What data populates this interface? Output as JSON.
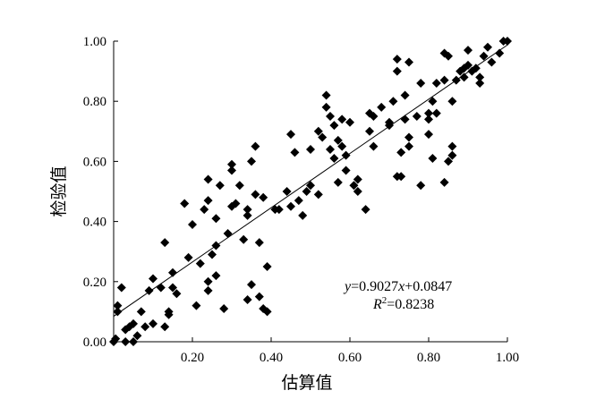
{
  "chart_data": {
    "type": "scatter",
    "title": "",
    "xlabel": "估算值",
    "ylabel": "检验值",
    "xlim": [
      0,
      1
    ],
    "ylim": [
      0,
      1
    ],
    "x_ticks": [
      "0.20",
      "0.40",
      "0.60",
      "0.80",
      "1.00"
    ],
    "y_ticks": [
      "0.00",
      "0.20",
      "0.40",
      "0.60",
      "0.80",
      "1.00"
    ],
    "grid": false,
    "marker": "diamond",
    "marker_color": "#000000",
    "regression": {
      "slope": 0.9027,
      "intercept": 0.0847
    },
    "equation_text": {
      "y_var": "y",
      "eq_part1": "=0.9027",
      "x_var": "x",
      "eq_part2": "+0.0847"
    },
    "r2_text": {
      "r_var": "R",
      "sup": "2",
      "value": "=0.8238"
    },
    "points": [
      [
        0.0,
        0.0
      ],
      [
        0.005,
        0.01
      ],
      [
        0.01,
        0.12
      ],
      [
        0.01,
        0.1
      ],
      [
        0.02,
        0.18
      ],
      [
        0.03,
        0.0
      ],
      [
        0.03,
        0.04
      ],
      [
        0.04,
        0.05
      ],
      [
        0.05,
        0.0
      ],
      [
        0.05,
        0.06
      ],
      [
        0.06,
        0.02
      ],
      [
        0.07,
        0.1
      ],
      [
        0.08,
        0.05
      ],
      [
        0.09,
        0.17
      ],
      [
        0.1,
        0.21
      ],
      [
        0.1,
        0.06
      ],
      [
        0.12,
        0.18
      ],
      [
        0.13,
        0.33
      ],
      [
        0.13,
        0.05
      ],
      [
        0.14,
        0.09
      ],
      [
        0.14,
        0.1
      ],
      [
        0.15,
        0.23
      ],
      [
        0.15,
        0.18
      ],
      [
        0.16,
        0.16
      ],
      [
        0.18,
        0.46
      ],
      [
        0.19,
        0.28
      ],
      [
        0.2,
        0.39
      ],
      [
        0.21,
        0.12
      ],
      [
        0.22,
        0.26
      ],
      [
        0.23,
        0.44
      ],
      [
        0.24,
        0.54
      ],
      [
        0.24,
        0.47
      ],
      [
        0.24,
        0.2
      ],
      [
        0.24,
        0.17
      ],
      [
        0.25,
        0.29
      ],
      [
        0.26,
        0.41
      ],
      [
        0.26,
        0.32
      ],
      [
        0.26,
        0.22
      ],
      [
        0.27,
        0.52
      ],
      [
        0.28,
        0.11
      ],
      [
        0.29,
        0.36
      ],
      [
        0.3,
        0.59
      ],
      [
        0.3,
        0.45
      ],
      [
        0.3,
        0.57
      ],
      [
        0.31,
        0.46
      ],
      [
        0.32,
        0.52
      ],
      [
        0.33,
        0.34
      ],
      [
        0.34,
        0.42
      ],
      [
        0.34,
        0.44
      ],
      [
        0.34,
        0.14
      ],
      [
        0.35,
        0.6
      ],
      [
        0.35,
        0.19
      ],
      [
        0.36,
        0.65
      ],
      [
        0.36,
        0.49
      ],
      [
        0.37,
        0.33
      ],
      [
        0.37,
        0.15
      ],
      [
        0.38,
        0.48
      ],
      [
        0.38,
        0.11
      ],
      [
        0.39,
        0.25
      ],
      [
        0.39,
        0.1
      ],
      [
        0.41,
        0.44
      ],
      [
        0.42,
        0.44
      ],
      [
        0.44,
        0.5
      ],
      [
        0.45,
        0.69
      ],
      [
        0.45,
        0.45
      ],
      [
        0.46,
        0.63
      ],
      [
        0.47,
        0.47
      ],
      [
        0.48,
        0.42
      ],
      [
        0.49,
        0.5
      ],
      [
        0.5,
        0.52
      ],
      [
        0.5,
        0.64
      ],
      [
        0.52,
        0.49
      ],
      [
        0.52,
        0.7
      ],
      [
        0.53,
        0.68
      ],
      [
        0.54,
        0.82
      ],
      [
        0.54,
        0.78
      ],
      [
        0.55,
        0.75
      ],
      [
        0.55,
        0.64
      ],
      [
        0.56,
        0.72
      ],
      [
        0.56,
        0.61
      ],
      [
        0.57,
        0.67
      ],
      [
        0.57,
        0.53
      ],
      [
        0.58,
        0.74
      ],
      [
        0.58,
        0.65
      ],
      [
        0.59,
        0.57
      ],
      [
        0.59,
        0.62
      ],
      [
        0.6,
        0.73
      ],
      [
        0.61,
        0.52
      ],
      [
        0.62,
        0.5
      ],
      [
        0.62,
        0.54
      ],
      [
        0.64,
        0.44
      ],
      [
        0.65,
        0.76
      ],
      [
        0.65,
        0.7
      ],
      [
        0.66,
        0.75
      ],
      [
        0.66,
        0.65
      ],
      [
        0.68,
        0.78
      ],
      [
        0.7,
        0.73
      ],
      [
        0.7,
        0.72
      ],
      [
        0.71,
        0.8
      ],
      [
        0.72,
        0.9
      ],
      [
        0.72,
        0.55
      ],
      [
        0.72,
        0.94
      ],
      [
        0.73,
        0.63
      ],
      [
        0.73,
        0.55
      ],
      [
        0.74,
        0.82
      ],
      [
        0.74,
        0.74
      ],
      [
        0.75,
        0.93
      ],
      [
        0.75,
        0.68
      ],
      [
        0.75,
        0.65
      ],
      [
        0.77,
        0.75
      ],
      [
        0.78,
        0.86
      ],
      [
        0.78,
        0.52
      ],
      [
        0.8,
        0.69
      ],
      [
        0.8,
        0.74
      ],
      [
        0.8,
        0.76
      ],
      [
        0.81,
        0.61
      ],
      [
        0.81,
        0.8
      ],
      [
        0.82,
        0.76
      ],
      [
        0.82,
        0.86
      ],
      [
        0.84,
        0.87
      ],
      [
        0.84,
        0.96
      ],
      [
        0.84,
        0.53
      ],
      [
        0.85,
        0.95
      ],
      [
        0.85,
        0.6
      ],
      [
        0.86,
        0.8
      ],
      [
        0.86,
        0.62
      ],
      [
        0.86,
        0.65
      ],
      [
        0.87,
        0.87
      ],
      [
        0.88,
        0.9
      ],
      [
        0.89,
        0.91
      ],
      [
        0.89,
        0.88
      ],
      [
        0.9,
        0.97
      ],
      [
        0.9,
        0.92
      ],
      [
        0.91,
        0.9
      ],
      [
        0.92,
        0.91
      ],
      [
        0.93,
        0.86
      ],
      [
        0.93,
        0.88
      ],
      [
        0.94,
        0.95
      ],
      [
        0.95,
        0.98
      ],
      [
        0.96,
        0.93
      ],
      [
        0.98,
        0.96
      ],
      [
        0.99,
        1.0
      ],
      [
        1.0,
        1.0
      ]
    ]
  }
}
